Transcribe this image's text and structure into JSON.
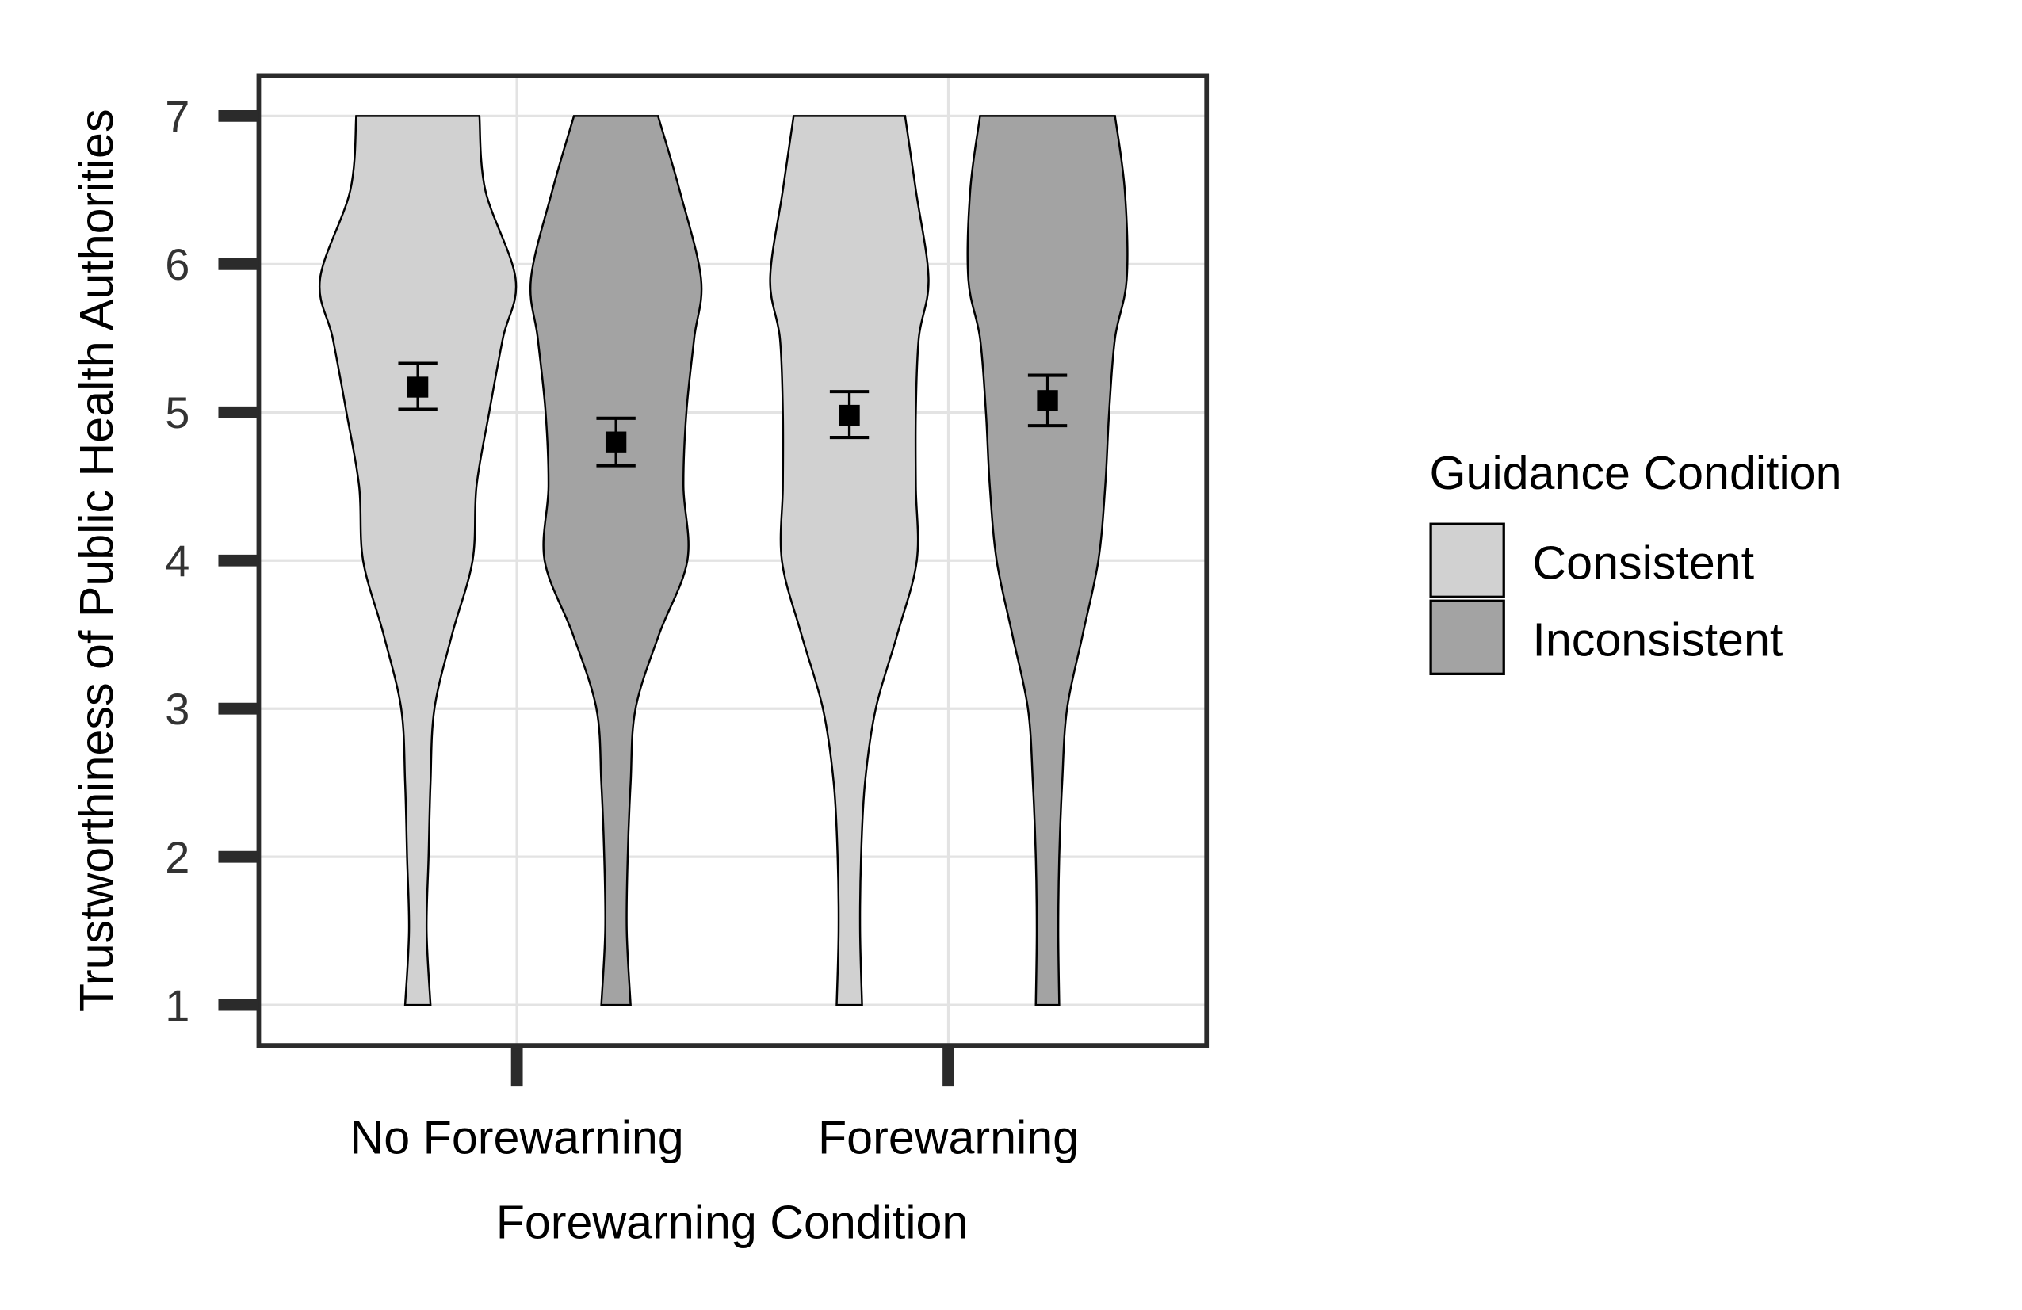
{
  "chart_data": {
    "type": "violin",
    "xlabel": "Forewarning Condition",
    "ylabel": "Trustworthiness of Public Health Authorities",
    "categories": [
      "No Forewarning",
      "Forewarning"
    ],
    "ylim": [
      0.73,
      7.27
    ],
    "yticks": [
      "1",
      "2",
      "3",
      "4",
      "5",
      "6",
      "7"
    ],
    "grid": true,
    "legend": {
      "title": "Guidance Condition",
      "placement": "right",
      "entries": [
        "Consistent",
        "Inconsistent"
      ]
    },
    "colors": {
      "Consistent": "#d1d1d1",
      "Inconsistent": "#a3a3a3",
      "marker": "#000000",
      "grid": "#e3e3e3",
      "axis": "#2b2b2b"
    },
    "density_y": [
      1,
      1.5,
      2,
      2.5,
      3,
      3.5,
      4,
      4.5,
      5,
      5.5,
      5.9,
      6.5,
      7
    ],
    "series": [
      {
        "name": "Consistent",
        "category": "No Forewarning",
        "mean": 5.17,
        "ci": [
          5.02,
          5.33
        ],
        "density": [
          0.13,
          0.09,
          0.11,
          0.13,
          0.17,
          0.35,
          0.56,
          0.6,
          0.73,
          0.87,
          1.0,
          0.69,
          0.63
        ]
      },
      {
        "name": "Inconsistent",
        "category": "No Forewarning",
        "mean": 4.8,
        "ci": [
          4.64,
          4.96
        ],
        "density": [
          0.15,
          0.11,
          0.12,
          0.15,
          0.2,
          0.44,
          0.73,
          0.69,
          0.72,
          0.8,
          0.87,
          0.65,
          0.43
        ]
      },
      {
        "name": "Consistent",
        "category": "Forewarning",
        "mean": 4.98,
        "ci": [
          4.83,
          5.14
        ],
        "density": [
          0.13,
          0.11,
          0.12,
          0.16,
          0.27,
          0.49,
          0.69,
          0.68,
          0.68,
          0.71,
          0.81,
          0.68,
          0.57
        ]
      },
      {
        "name": "Inconsistent",
        "category": "Forewarning",
        "mean": 5.08,
        "ci": [
          4.91,
          5.25
        ],
        "density": [
          0.12,
          0.11,
          0.12,
          0.15,
          0.2,
          0.36,
          0.52,
          0.59,
          0.63,
          0.69,
          0.81,
          0.79,
          0.69
        ]
      }
    ]
  }
}
